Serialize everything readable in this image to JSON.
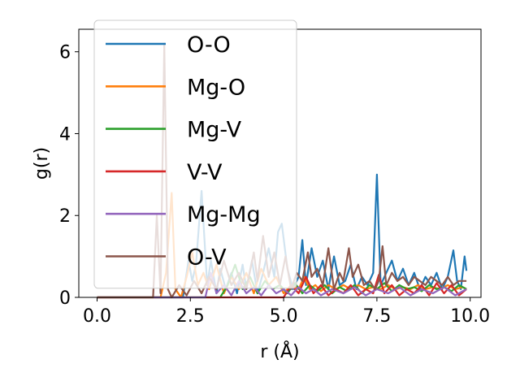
{
  "chart_data": {
    "type": "line",
    "xlabel": "r (Å)",
    "ylabel": "g(r)",
    "xlim": [
      -0.49,
      10.29
    ],
    "ylim": [
      0,
      6.55
    ],
    "xticks": [
      0.0,
      2.5,
      5.0,
      7.5,
      10.0
    ],
    "xtick_labels": [
      "0.0",
      "2.5",
      "5.0",
      "7.5",
      "10.0"
    ],
    "yticks": [
      0,
      2,
      4,
      6
    ],
    "ytick_labels": [
      "0",
      "2",
      "4",
      "6"
    ],
    "legend_position": "upper-left",
    "grid": false,
    "series": [
      {
        "name": "O-O",
        "color": "#1f77b4",
        "x": [
          0,
          2.3,
          2.45,
          2.55,
          2.65,
          2.8,
          2.95,
          3.05,
          3.2,
          3.3,
          3.45,
          3.6,
          3.75,
          3.9,
          4.0,
          4.15,
          4.3,
          4.45,
          4.6,
          4.75,
          4.85,
          4.95,
          5.1,
          5.25,
          5.4,
          5.5,
          5.6,
          5.75,
          5.9,
          6.05,
          6.2,
          6.35,
          6.5,
          6.65,
          6.8,
          6.95,
          7.1,
          7.25,
          7.4,
          7.5,
          7.6,
          7.75,
          7.9,
          8.05,
          8.2,
          8.35,
          8.5,
          8.65,
          8.8,
          8.95,
          9.1,
          9.25,
          9.4,
          9.55,
          9.65,
          9.75,
          9.85,
          9.9
        ],
        "y": [
          0,
          0,
          0.9,
          0.4,
          0.8,
          2.6,
          0.3,
          0.9,
          0.1,
          0.7,
          0.2,
          0.6,
          0.1,
          0.8,
          0.2,
          0.9,
          0.1,
          0.6,
          1.2,
          0.5,
          1.6,
          1.8,
          0.7,
          0.2,
          0.5,
          1.4,
          0.3,
          1.2,
          0.5,
          0.9,
          0.2,
          1.0,
          0.3,
          0.4,
          0.8,
          0.2,
          0.5,
          0.3,
          0.6,
          3.0,
          0.3,
          0.6,
          0.9,
          0.4,
          0.7,
          0.3,
          0.6,
          0.2,
          0.5,
          0.3,
          0.6,
          0.2,
          0.5,
          1.15,
          0.4,
          0.2,
          1.0,
          0.65
        ]
      },
      {
        "name": "Mg-O",
        "color": "#ff7f0e",
        "x": [
          0,
          1.7,
          1.85,
          2.0,
          2.1,
          2.25,
          2.4,
          2.55,
          2.7,
          2.85,
          3.0,
          3.2,
          3.4,
          3.6,
          3.8,
          4.0,
          4.2,
          4.4,
          4.6,
          4.8,
          5.0,
          5.2,
          5.4,
          5.55,
          5.7,
          5.85,
          6.0,
          6.2,
          6.4,
          6.6,
          6.8,
          7.0,
          7.2,
          7.4,
          7.6,
          7.8,
          8.0,
          8.2,
          8.4,
          8.6,
          8.8,
          9.0,
          9.2,
          9.4,
          9.6,
          9.8,
          9.9
        ],
        "y": [
          0,
          0,
          0.6,
          2.55,
          0.2,
          0,
          0.5,
          1.1,
          0.3,
          0.6,
          0.2,
          0.8,
          0.1,
          0.5,
          0.2,
          0.6,
          0.1,
          0.7,
          0.3,
          0.5,
          0.1,
          0.3,
          0.2,
          0.5,
          0.2,
          0.3,
          0.15,
          0.3,
          0.2,
          0.3,
          0.2,
          0.3,
          0.2,
          0.25,
          0.2,
          0.3,
          0.2,
          0.25,
          0.2,
          0.3,
          0.2,
          0.25,
          0.2,
          0.3,
          0.2,
          0.25,
          0.2
        ]
      },
      {
        "name": "Mg-V",
        "color": "#2ca02c",
        "x": [
          0,
          3.3,
          3.5,
          3.7,
          3.9,
          4.1,
          4.3,
          4.5,
          4.7,
          4.9,
          5.1,
          5.3,
          5.5,
          5.7,
          5.9,
          6.1,
          6.3,
          6.5,
          6.7,
          6.9,
          7.1,
          7.3,
          7.5,
          7.7,
          7.9,
          8.1,
          8.3,
          8.5,
          8.7,
          8.9,
          9.1,
          9.3,
          9.5,
          9.7,
          9.9
        ],
        "y": [
          0,
          0,
          0.3,
          0.8,
          0.2,
          0.5,
          0.1,
          0.4,
          0.2,
          0.3,
          0.1,
          0.35,
          0.1,
          0.3,
          0.15,
          0.3,
          0.1,
          0.25,
          0.15,
          0.3,
          0.1,
          0.3,
          0.2,
          0.35,
          0.15,
          0.3,
          0.2,
          0.25,
          0.15,
          0.3,
          0.2,
          0.25,
          0.15,
          0.3,
          0.2
        ]
      },
      {
        "name": "V-V",
        "color": "#d62728",
        "x": [
          0,
          5.0,
          5.2,
          5.4,
          5.6,
          5.8,
          6.0,
          6.2,
          6.4,
          6.6,
          6.8,
          7.0,
          7.2,
          7.4,
          7.55,
          7.7,
          7.9,
          8.1,
          8.3,
          8.5,
          8.7,
          8.9,
          9.1,
          9.3,
          9.5,
          9.7,
          9.9
        ],
        "y": [
          0,
          0,
          0.3,
          0.1,
          0.5,
          0.1,
          0.3,
          0.05,
          0.2,
          0.1,
          0.3,
          0.05,
          0.2,
          0.1,
          0.55,
          0.1,
          0.3,
          0.05,
          0.2,
          0.1,
          0.3,
          0.05,
          0.35,
          0.1,
          0.3,
          0.05,
          0.2
        ]
      },
      {
        "name": "Mg-Mg",
        "color": "#9467bd",
        "x": [
          0,
          2.9,
          3.05,
          3.2,
          3.4,
          3.6,
          3.8,
          4.0,
          4.2,
          4.4,
          4.6,
          4.8,
          5.0,
          5.2,
          5.4,
          5.6,
          5.8,
          6.0,
          6.3,
          6.6,
          6.9,
          7.2,
          7.5,
          7.8,
          8.1,
          8.4,
          8.7,
          9.0,
          9.3,
          9.6,
          9.9
        ],
        "y": [
          0,
          0,
          0.6,
          0.1,
          0.3,
          0.05,
          0.4,
          0.1,
          0.25,
          0.05,
          0.3,
          0.1,
          0.2,
          0.05,
          0.25,
          0.1,
          0.2,
          0.05,
          0.2,
          0.1,
          0.25,
          0.05,
          0.2,
          0.1,
          0.25,
          0.05,
          0.2,
          0.1,
          0.25,
          0.05,
          0.2
        ]
      },
      {
        "name": "O-V",
        "color": "#8c564b",
        "x": [
          0,
          1.5,
          1.6,
          1.7,
          1.8,
          1.9,
          2.0,
          2.2,
          2.4,
          2.6,
          2.8,
          3.0,
          3.2,
          3.4,
          3.6,
          3.8,
          4.0,
          4.2,
          4.3,
          4.45,
          4.6,
          4.75,
          4.9,
          5.05,
          5.2,
          5.35,
          5.5,
          5.65,
          5.75,
          5.9,
          6.05,
          6.2,
          6.35,
          6.5,
          6.6,
          6.75,
          6.85,
          7.0,
          7.15,
          7.3,
          7.45,
          7.55,
          7.65,
          7.75,
          7.9,
          8.05,
          8.2,
          8.35,
          8.5,
          8.65,
          8.8,
          8.95,
          9.1,
          9.25,
          9.4,
          9.55,
          9.7,
          9.85,
          9.9
        ],
        "y": [
          0,
          0,
          2.0,
          0.1,
          6.2,
          0.2,
          0,
          0.3,
          0.05,
          0.4,
          0.1,
          0.5,
          0.2,
          0.9,
          0.3,
          0.6,
          0.2,
          1.1,
          0.4,
          1.5,
          0.5,
          1.1,
          0.3,
          1.0,
          0.2,
          0.6,
          0.4,
          1.1,
          0.5,
          0.7,
          0.3,
          1.2,
          0.2,
          0.6,
          0.4,
          1.2,
          0.5,
          0.8,
          0.3,
          0.4,
          0.2,
          0.4,
          1.25,
          0.3,
          0.6,
          0.4,
          0.5,
          0.3,
          0.5,
          0.4,
          0.3,
          0.5,
          0.4,
          0.3,
          0.5,
          0.3,
          0.4,
          0.4,
          0.4
        ]
      }
    ]
  }
}
